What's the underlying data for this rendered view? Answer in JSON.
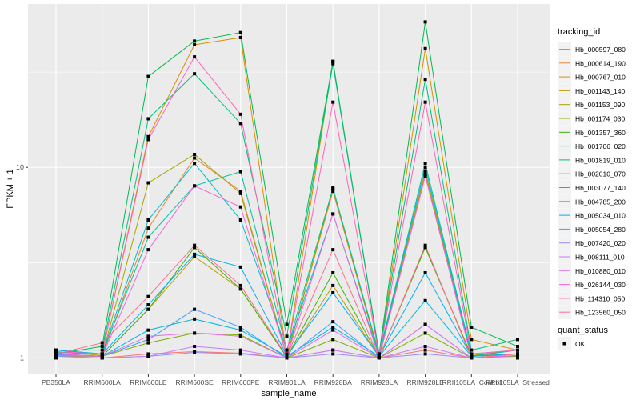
{
  "chart_data": {
    "type": "line",
    "xlabel": "sample_name",
    "ylabel": "FPKM + 1",
    "yscale": "log10",
    "ylim": [
      0.82,
      72
    ],
    "yticks": [
      1,
      10
    ],
    "ytick_labels": [
      "1",
      "10"
    ],
    "grid": true,
    "categories": [
      "PB350LA",
      "RRIM600LA",
      "RRIM600LE",
      "RRIM600SE",
      "RRIM600PE",
      "RRIM901LA",
      "RRIM928BA",
      "RRIM928LA",
      "RRIM928LE",
      "RRII105LA_Control",
      "RRII105LA_Stressed"
    ],
    "legend": {
      "title": "tracking_id",
      "placement": "right"
    },
    "shape_legend": {
      "title": "quant_status",
      "items": [
        "OK"
      ]
    },
    "series": [
      {
        "name": "Hb_000597_080",
        "color": "#F8766D",
        "values": [
          1.02,
          1.0,
          1.05,
          1.08,
          1.06,
          1.0,
          1.1,
          1.0,
          1.1,
          1.0,
          1.05
        ]
      },
      {
        "name": "Hb_000614_190",
        "color": "#EA8331",
        "values": [
          1.03,
          1.02,
          4.8,
          11.2,
          7.5,
          1.02,
          7.5,
          1.02,
          9.2,
          1.02,
          1.05
        ]
      },
      {
        "name": "Hb_000767_010",
        "color": "#D89000",
        "values": [
          1.05,
          1.05,
          14.5,
          44,
          48,
          1.03,
          36,
          1.03,
          42,
          1.25,
          1.1
        ]
      },
      {
        "name": "Hb_001143_140",
        "color": "#C09B00",
        "values": [
          1.05,
          1.02,
          1.8,
          3.4,
          2.3,
          1.01,
          2.4,
          1.01,
          3.8,
          1.03,
          1.05
        ]
      },
      {
        "name": "Hb_001153_090",
        "color": "#A3A500",
        "values": [
          1.08,
          1.03,
          8.3,
          11.7,
          7.3,
          1.02,
          7.7,
          1.02,
          9.5,
          1.03,
          1.1
        ]
      },
      {
        "name": "Hb_001174_030",
        "color": "#7CAE00",
        "values": [
          1.02,
          1.02,
          1.2,
          1.35,
          1.32,
          1.0,
          1.25,
          1.0,
          1.35,
          1.0,
          1.02
        ]
      },
      {
        "name": "Hb_001357_360",
        "color": "#39B600",
        "values": [
          1.04,
          1.02,
          1.8,
          3.8,
          2.3,
          1.01,
          2.8,
          1.01,
          3.8,
          1.02,
          1.05
        ]
      },
      {
        "name": "Hb_001706_020",
        "color": "#00BB4E",
        "values": [
          1.05,
          1.15,
          30,
          46,
          51,
          1.5,
          36,
          1.05,
          58,
          1.45,
          1.15
        ]
      },
      {
        "name": "Hb_001819_010",
        "color": "#00BF7D",
        "values": [
          1.1,
          1.1,
          18,
          31,
          17,
          1.3,
          35,
          1.05,
          29,
          1.1,
          1.25
        ]
      },
      {
        "name": "Hb_002010_070",
        "color": "#00C1A3",
        "values": [
          1.1,
          1.05,
          4.3,
          8,
          9.5,
          1.1,
          7.8,
          1.05,
          10.5,
          1.05,
          1.1
        ]
      },
      {
        "name": "Hb_003077_140",
        "color": "#00BFC4",
        "values": [
          1.07,
          1.05,
          5.3,
          10.5,
          5.3,
          1.1,
          5.7,
          1.03,
          10,
          1.02,
          1.1
        ]
      },
      {
        "name": "Hb_004785_200",
        "color": "#00BAE0",
        "values": [
          1.05,
          1.02,
          1.4,
          1.6,
          1.4,
          1.02,
          1.45,
          1.02,
          2.0,
          1.02,
          1.05
        ]
      },
      {
        "name": "Hb_005034_010",
        "color": "#00B0F6",
        "values": [
          1.1,
          1.05,
          1.9,
          3.5,
          3.0,
          1.03,
          2.2,
          1.02,
          2.8,
          1.02,
          1.05
        ]
      },
      {
        "name": "Hb_005054_280",
        "color": "#35A2FF",
        "values": [
          1.04,
          1.02,
          1.25,
          1.8,
          1.45,
          1.0,
          1.55,
          1.0,
          1.5,
          1.0,
          1.03
        ]
      },
      {
        "name": "Hb_007420_020",
        "color": "#9590FF",
        "values": [
          1.02,
          1.0,
          1.02,
          1.07,
          1.05,
          1.0,
          1.05,
          1.0,
          1.05,
          1.0,
          1.0
        ]
      },
      {
        "name": "Hb_008111_010",
        "color": "#C77CFF",
        "values": [
          1.0,
          1.0,
          1.02,
          1.15,
          1.1,
          1.0,
          1.1,
          1.0,
          1.15,
          1.0,
          1.0
        ]
      },
      {
        "name": "Hb_010880_010",
        "color": "#E76BF3",
        "values": [
          1.03,
          1.02,
          1.3,
          1.35,
          1.3,
          1.0,
          1.4,
          1.0,
          1.5,
          1.0,
          1.03
        ]
      },
      {
        "name": "Hb_026144_030",
        "color": "#FA62DB",
        "values": [
          1.05,
          1.02,
          3.7,
          8,
          6.2,
          1.02,
          5.7,
          1.0,
          9,
          1.0,
          1.05
        ]
      },
      {
        "name": "Hb_114310_050",
        "color": "#FF62BC",
        "values": [
          1.08,
          1.05,
          14,
          38,
          19,
          1.05,
          22,
          1.03,
          22,
          1.05,
          1.1
        ]
      },
      {
        "name": "Hb_123560_050",
        "color": "#FF6C91",
        "values": [
          1.05,
          1.2,
          2.1,
          3.9,
          2.4,
          1.02,
          3.7,
          1.0,
          3.9,
          1.0,
          1.05
        ]
      }
    ]
  }
}
